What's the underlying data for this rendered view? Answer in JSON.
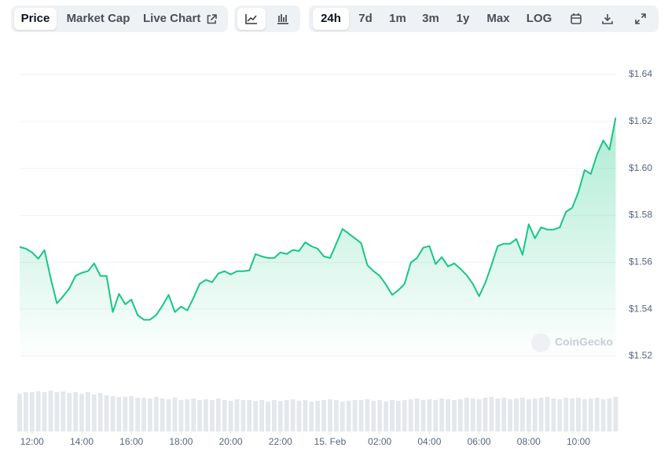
{
  "toolbar": {
    "chart_views": [
      "Price",
      "Market Cap",
      "Live Chart"
    ],
    "ranges": [
      "24h",
      "7d",
      "1m",
      "3m",
      "1y",
      "Max",
      "LOG"
    ]
  },
  "chart_data": {
    "type": "line",
    "watermark": "CoinGecko",
    "color": "#16c784",
    "volume_color": "#e4e7eb",
    "x": [
      11.5,
      11.75,
      12,
      12.25,
      12.5,
      12.75,
      13,
      13.25,
      13.5,
      13.75,
      14,
      14.25,
      14.5,
      14.75,
      15,
      15.25,
      15.5,
      15.75,
      16,
      16.25,
      16.5,
      16.75,
      17,
      17.25,
      17.5,
      17.75,
      18,
      18.25,
      18.5,
      18.75,
      19,
      19.25,
      19.5,
      19.75,
      20,
      20.25,
      20.5,
      20.75,
      21,
      21.25,
      21.5,
      21.75,
      22,
      22.25,
      22.5,
      22.75,
      23,
      23.25,
      23.5,
      23.75,
      24,
      24.25,
      24.5,
      24.75,
      25,
      25.25,
      25.5,
      25.75,
      26,
      26.25,
      26.5,
      26.75,
      27,
      27.25,
      27.5,
      27.75,
      28,
      28.25,
      28.5,
      28.75,
      29,
      29.25,
      29.5,
      29.75,
      30,
      30.25,
      30.5,
      30.75,
      31,
      31.25,
      31.5,
      31.75,
      32,
      32.25,
      32.5,
      32.75,
      33,
      33.25,
      33.5,
      33.75,
      34,
      34.25,
      34.5,
      34.75,
      35,
      35.25,
      35.5
    ],
    "values": [
      1.5665,
      1.5658,
      1.5642,
      1.5615,
      1.5652,
      1.5532,
      1.5425,
      1.5455,
      1.5488,
      1.5542,
      1.5555,
      1.5562,
      1.5595,
      1.5542,
      1.5542,
      1.5388,
      1.5465,
      1.5421,
      1.5441,
      1.5375,
      1.5355,
      1.5355,
      1.5375,
      1.5415,
      1.5461,
      1.5388,
      1.5411,
      1.5395,
      1.5448,
      1.5508,
      1.5525,
      1.5515,
      1.5552,
      1.5562,
      1.5548,
      1.5562,
      1.5562,
      1.5565,
      1.5635,
      1.5625,
      1.5618,
      1.5618,
      1.5642,
      1.5635,
      1.5652,
      1.5648,
      1.5685,
      1.5668,
      1.5658,
      1.5625,
      1.5618,
      1.5679,
      1.5742,
      1.5722,
      1.5702,
      1.5682,
      1.5588,
      1.5562,
      1.5542,
      1.5505,
      1.5461,
      1.5481,
      1.5508,
      1.5598,
      1.5618,
      1.5662,
      1.5669,
      1.5592,
      1.5622,
      1.5582,
      1.5595,
      1.5572,
      1.5545,
      1.5508,
      1.5455,
      1.5512,
      1.5588,
      1.5669,
      1.5679,
      1.5679,
      1.5699,
      1.5632,
      1.5762,
      1.5702,
      1.5749,
      1.5739,
      1.5739,
      1.5749,
      1.5815,
      1.5832,
      1.5899,
      1.5993,
      1.5976,
      1.6059,
      1.6119,
      1.6079,
      1.6216
    ],
    "volume": [
      48,
      50,
      50,
      51,
      50,
      52,
      50,
      51,
      49,
      50,
      48,
      50,
      47,
      49,
      46,
      45,
      44,
      44,
      45,
      43,
      43,
      42,
      44,
      42,
      41,
      43,
      40,
      41,
      42,
      40,
      41,
      40,
      42,
      40,
      39,
      41,
      40,
      40,
      39,
      40,
      38,
      40,
      39,
      40,
      41,
      39,
      40,
      38,
      39,
      40,
      41,
      40,
      38,
      39,
      40,
      40,
      41,
      39,
      40,
      38,
      40,
      39,
      40,
      41,
      42,
      40,
      41,
      40,
      42,
      41,
      40,
      41,
      43,
      42,
      41,
      43,
      44,
      42,
      43,
      41,
      42,
      43,
      41,
      42,
      43,
      44,
      42,
      41,
      43,
      42,
      43,
      41,
      42,
      43,
      41,
      42,
      44
    ],
    "volume_ylim": [
      0,
      60
    ],
    "xlim": [
      11.5,
      35.5
    ],
    "xticks": [
      {
        "value": 12,
        "label": "12:00"
      },
      {
        "value": 14,
        "label": "14:00"
      },
      {
        "value": 16,
        "label": "16:00"
      },
      {
        "value": 18,
        "label": "18:00"
      },
      {
        "value": 20,
        "label": "20:00"
      },
      {
        "value": 22,
        "label": "22:00"
      },
      {
        "value": 24,
        "label": "15. Feb"
      },
      {
        "value": 26,
        "label": "02:00"
      },
      {
        "value": 28,
        "label": "04:00"
      },
      {
        "value": 30,
        "label": "06:00"
      },
      {
        "value": 32,
        "label": "08:00"
      },
      {
        "value": 34,
        "label": "10:00"
      }
    ],
    "ylim": [
      1.52,
      1.64
    ],
    "yticks": [
      {
        "value": 1.52,
        "label": "$1.52"
      },
      {
        "value": 1.54,
        "label": "$1.54"
      },
      {
        "value": 1.56,
        "label": "$1.56"
      },
      {
        "value": 1.58,
        "label": "$1.58"
      },
      {
        "value": 1.6,
        "label": "$1.60"
      },
      {
        "value": 1.62,
        "label": "$1.62"
      },
      {
        "value": 1.64,
        "label": "$1.64"
      }
    ],
    "grid": true
  }
}
